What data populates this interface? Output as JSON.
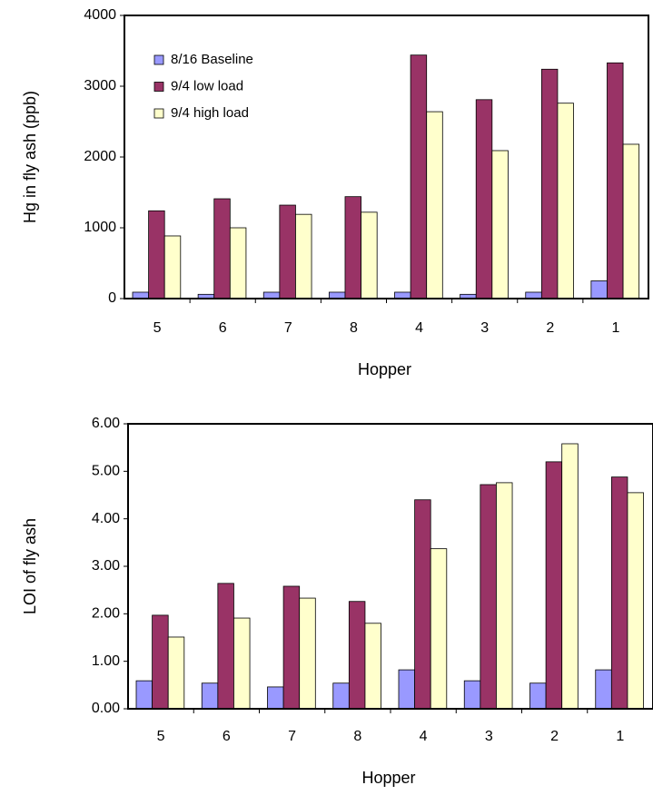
{
  "chart_data": [
    {
      "type": "bar",
      "x_label": "Hopper",
      "y_label": "Hg in fly ash (ppb)",
      "categories": [
        "5",
        "6",
        "7",
        "8",
        "4",
        "3",
        "2",
        "1"
      ],
      "series": [
        {
          "name": "8/16 Baseline",
          "color": "#9999ff",
          "values": [
            90,
            60,
            90,
            90,
            90,
            60,
            90,
            250
          ]
        },
        {
          "name": "9/4 low  load",
          "color": "#993366",
          "values": [
            1240,
            1410,
            1320,
            1440,
            3440,
            2810,
            3240,
            3330
          ]
        },
        {
          "name": "9/4 high load",
          "color": "#ffffcc",
          "values": [
            885,
            1000,
            1190,
            1220,
            2640,
            2090,
            2760,
            2180
          ]
        }
      ],
      "ylim": [
        0,
        4000
      ],
      "yticks": [
        0,
        1000,
        2000,
        3000,
        4000
      ],
      "legend": "upper left"
    },
    {
      "type": "bar",
      "x_label": "Hopper",
      "y_label": "LOI of fly ash",
      "categories": [
        "5",
        "6",
        "7",
        "8",
        "4",
        "3",
        "2",
        "1"
      ],
      "series": [
        {
          "color": "#9999ff",
          "values": [
            0.59,
            0.54,
            0.46,
            0.54,
            0.82,
            0.59,
            0.54,
            0.82
          ]
        },
        {
          "color": "#993366",
          "values": [
            1.97,
            2.64,
            2.58,
            2.26,
            4.4,
            4.72,
            5.2,
            4.88
          ]
        },
        {
          "color": "#ffffcc",
          "values": [
            1.51,
            1.91,
            2.33,
            1.8,
            3.37,
            4.76,
            5.58,
            4.55
          ]
        }
      ],
      "ylim": [
        0,
        6
      ],
      "yticks": [
        {
          "value": 0,
          "label": "0.00"
        },
        {
          "value": 1,
          "label": "1.00"
        },
        {
          "value": 2,
          "label": "2.00"
        },
        {
          "value": 3,
          "label": "3.00"
        },
        {
          "value": 4,
          "label": "4.00"
        },
        {
          "value": 5,
          "label": "5.00"
        },
        {
          "value": 6,
          "label": "6.00"
        }
      ]
    }
  ]
}
